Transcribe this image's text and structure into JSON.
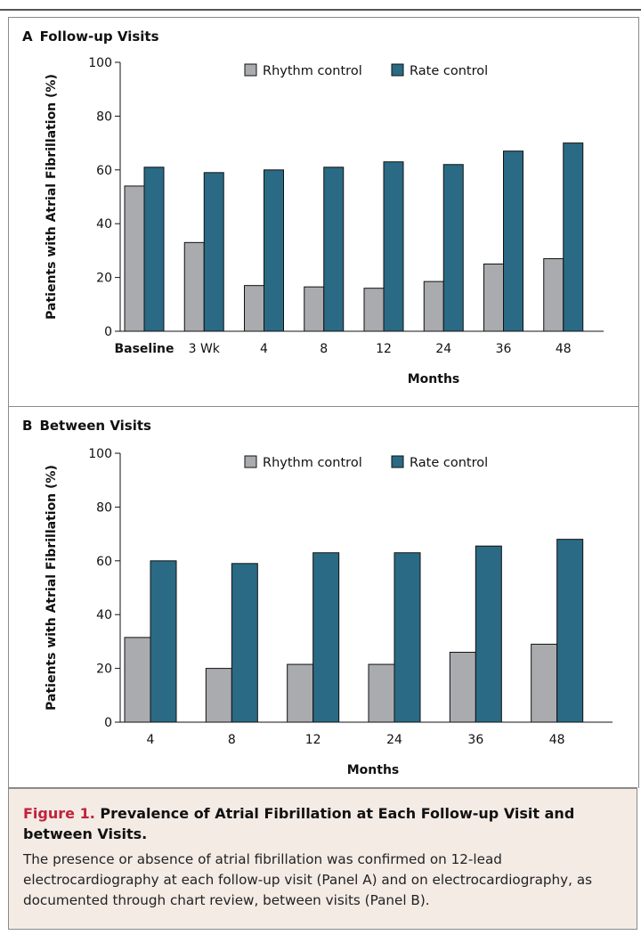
{
  "colors": {
    "rhythm": "#a9abae",
    "rate": "#2a6a84",
    "caption_bg": "#f4ebe5",
    "figure_label": "#c0233a"
  },
  "panels": [
    {
      "letter": "A",
      "title": "Follow-up Visits"
    },
    {
      "letter": "B",
      "title": "Between Visits"
    }
  ],
  "chart_data": [
    {
      "type": "bar",
      "title": "A Follow-up Visits",
      "categories": [
        "Baseline",
        "3 Wk",
        "4",
        "8",
        "12",
        "24",
        "36",
        "48"
      ],
      "series": [
        {
          "name": "Rhythm control",
          "values": [
            54,
            33,
            17,
            16.5,
            16,
            18.5,
            25,
            27
          ]
        },
        {
          "name": "Rate control",
          "values": [
            61,
            59,
            60,
            61,
            63,
            62,
            67,
            70
          ]
        }
      ],
      "xlabel": "Months",
      "ylabel": "Patients with Atrial Fibrillation (%)",
      "ylim": [
        0,
        100
      ],
      "yticks": [
        0,
        20,
        40,
        60,
        80,
        100
      ],
      "legend": "top-center",
      "grid": false
    },
    {
      "type": "bar",
      "title": "B Between Visits",
      "categories": [
        "4",
        "8",
        "12",
        "24",
        "36",
        "48"
      ],
      "series": [
        {
          "name": "Rhythm control",
          "values": [
            31.5,
            20,
            21.5,
            21.5,
            26,
            29
          ]
        },
        {
          "name": "Rate control",
          "values": [
            60,
            59,
            63,
            63,
            65.5,
            68
          ]
        }
      ],
      "xlabel": "Months",
      "ylabel": "Patients with Atrial Fibrillation (%)",
      "ylim": [
        0,
        100
      ],
      "yticks": [
        0,
        20,
        40,
        60,
        80,
        100
      ],
      "legend": "top-center",
      "grid": false
    }
  ],
  "caption": {
    "label": "Figure 1.",
    "title": "Prevalence of Atrial Fibrillation at Each Follow-up Visit and between Visits.",
    "text": "The presence or absence of atrial fibrillation was confirmed on 12-lead electrocardiography at each follow-up visit (Panel A) and on electrocardiography, as documented through chart review, between visits (Panel B)."
  }
}
